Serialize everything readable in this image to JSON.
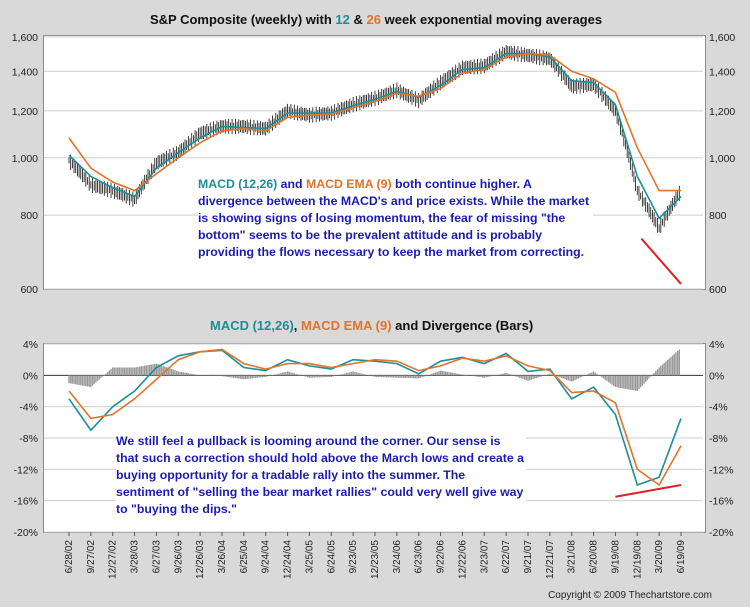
{
  "chart_data": [
    {
      "type": "line",
      "title_parts": [
        "S&P Composite (weekly) with ",
        "12",
        " & ",
        "26",
        " week exponential moving averages"
      ],
      "y_scale": "log",
      "ylim": [
        600,
        1600
      ],
      "y_ticks": [
        600,
        800,
        1000,
        1200,
        1400,
        1600
      ],
      "y_tick_labels": [
        "600",
        "800",
        "1,000",
        "1,200",
        "1,400",
        "1,600"
      ],
      "x_dates": [
        "2002-06-28",
        "2002-09-27",
        "2002-12-27",
        "2003-03-28",
        "2003-06-27",
        "2003-09-26",
        "2003-12-26",
        "2004-03-26",
        "2004-06-25",
        "2004-09-24",
        "2004-12-24",
        "2005-03-25",
        "2005-06-24",
        "2005-09-23",
        "2005-12-23",
        "2006-03-24",
        "2006-06-23",
        "2006-09-22",
        "2006-12-22",
        "2007-03-23",
        "2007-06-22",
        "2007-09-21",
        "2007-12-21",
        "2008-03-21",
        "2008-06-20",
        "2008-09-19",
        "2008-12-19",
        "2009-03-20",
        "2009-06-19"
      ],
      "series": [
        {
          "key": "price",
          "color": "#000000",
          "values": [
            990,
            900,
            880,
            850,
            980,
            1020,
            1100,
            1130,
            1130,
            1120,
            1200,
            1180,
            1190,
            1230,
            1260,
            1300,
            1250,
            1340,
            1420,
            1430,
            1510,
            1490,
            1470,
            1320,
            1330,
            1200,
            880,
            760,
            880
          ]
        },
        {
          "name": "12",
          "color": "#1a8f99",
          "values": [
            1010,
            930,
            890,
            860,
            960,
            1020,
            1080,
            1130,
            1125,
            1120,
            1190,
            1190,
            1190,
            1225,
            1255,
            1295,
            1265,
            1325,
            1410,
            1420,
            1500,
            1500,
            1480,
            1350,
            1340,
            1230,
            930,
            790,
            860
          ]
        },
        {
          "name": "26",
          "color": "#e2732a",
          "values": [
            1080,
            960,
            910,
            880,
            940,
            1000,
            1060,
            1110,
            1120,
            1110,
            1170,
            1180,
            1185,
            1215,
            1245,
            1285,
            1270,
            1310,
            1390,
            1410,
            1480,
            1500,
            1490,
            1400,
            1360,
            1290,
            1040,
            880,
            880
          ]
        }
      ],
      "annotation_trendline": {
        "color": "#e02020",
        "from": {
          "x": "2009-01-05",
          "y": 730
        },
        "to": {
          "x": "2009-06-19",
          "y": 612
        }
      },
      "annotation_text_parts": [
        "MACD (12,26)",
        " and ",
        "MACD EMA (9)",
        " both continue higher.  A divergence between the MACD's and price exists.  While the market is showing signs of losing momentum, the fear of missing \"the bottom\" seems to be the prevalent attitude and is probably providing the flows necessary to keep the market from correcting."
      ]
    },
    {
      "type": "line",
      "title_parts": [
        "MACD (12,26)",
        ", ",
        "MACD EMA (9)",
        " and Divergence (Bars)"
      ],
      "ylim": [
        -20,
        4
      ],
      "y_ticks": [
        4,
        0,
        -4,
        -8,
        -12,
        -16,
        -20
      ],
      "y_tick_labels": [
        "4%",
        "0%",
        "-4%",
        "-8%",
        "-12%",
        "-16%",
        "-20%"
      ],
      "x_dates": [
        "2002-06-28",
        "2002-09-27",
        "2002-12-27",
        "2003-03-28",
        "2003-06-27",
        "2003-09-26",
        "2003-12-26",
        "2004-03-26",
        "2004-06-25",
        "2004-09-24",
        "2004-12-24",
        "2005-03-25",
        "2005-06-24",
        "2005-09-23",
        "2005-12-23",
        "2006-03-24",
        "2006-06-23",
        "2006-09-22",
        "2006-12-22",
        "2007-03-23",
        "2007-06-22",
        "2007-09-21",
        "2007-12-21",
        "2008-03-21",
        "2008-06-20",
        "2008-09-19",
        "2008-12-19",
        "2009-03-20",
        "2009-06-19"
      ],
      "series": [
        {
          "name": "MACD (12,26)",
          "color": "#1a8f99",
          "values": [
            -3,
            -7,
            -4,
            -2,
            1,
            2.5,
            3,
            3.2,
            1,
            0.6,
            2,
            1.2,
            0.8,
            2,
            1.8,
            1.5,
            0.2,
            1.8,
            2.3,
            1.5,
            2.8,
            0.5,
            0.8,
            -3,
            -1.5,
            -5,
            -14,
            -13,
            -5.5
          ]
        },
        {
          "name": "MACD EMA (9)",
          "color": "#e2732a",
          "values": [
            -2,
            -5.5,
            -5,
            -3,
            -0.5,
            2,
            3,
            3.3,
            1.5,
            0.8,
            1.5,
            1.5,
            1,
            1.5,
            2,
            1.8,
            0.6,
            1.2,
            2.2,
            1.8,
            2.5,
            1.2,
            0.6,
            -2.2,
            -2,
            -3.5,
            -12,
            -14,
            -9
          ]
        },
        {
          "name": "Divergence (Bars)",
          "color": "#999999",
          "values": [
            -1,
            -1.5,
            1,
            1,
            1.5,
            0.5,
            0,
            -0.1,
            -0.5,
            -0.2,
            0.5,
            -0.3,
            -0.2,
            0.5,
            -0.2,
            -0.3,
            -0.4,
            0.6,
            0.1,
            -0.3,
            0.3,
            -0.7,
            0.2,
            -0.8,
            0.5,
            -1.5,
            -2,
            1,
            3.5
          ]
        }
      ],
      "annotation_trendline": {
        "color": "#e02020",
        "from": {
          "x": "2008-09-19",
          "y": -15.5
        },
        "to": {
          "x": "2009-06-19",
          "y": -14
        }
      },
      "annotation_text": "We still feel a pullback is looming around the corner.  Our sense is that such a correction should hold above the March lows and create a buying opportunity for a tradable rally into the summer.  The sentiment of \"selling the bear market rallies\" could very well give way to \"buying the dips.\""
    }
  ],
  "x_axis_labels": [
    "6/28/02",
    "9/27/02",
    "12/27/02",
    "3/28/03",
    "6/27/03",
    "9/26/03",
    "12/26/03",
    "3/26/04",
    "6/25/04",
    "9/24/04",
    "12/24/04",
    "3/25/05",
    "6/24/05",
    "9/23/05",
    "12/23/05",
    "3/24/06",
    "6/23/06",
    "9/22/06",
    "12/22/06",
    "3/23/07",
    "6/22/07",
    "9/21/07",
    "12/21/07",
    "3/21/08",
    "6/20/08",
    "9/19/08",
    "12/19/08",
    "3/20/09",
    "6/19/09"
  ],
  "copyright": "Copyright © 2009 Thechartstore.com"
}
